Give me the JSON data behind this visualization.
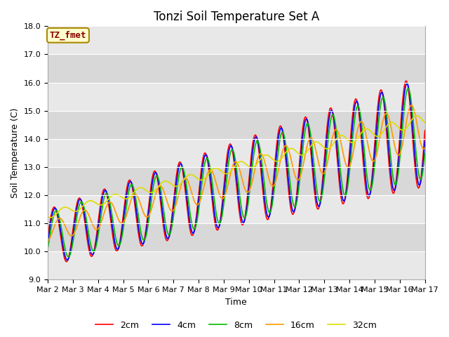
{
  "title": "Tonzi Soil Temperature Set A",
  "xlabel": "Time",
  "ylabel": "Soil Temperature (C)",
  "ylim": [
    9.0,
    18.0
  ],
  "yticks": [
    9.0,
    10.0,
    11.0,
    12.0,
    13.0,
    14.0,
    15.0,
    16.0,
    17.0,
    18.0
  ],
  "xtick_labels": [
    "Mar 2",
    "Mar 3",
    "Mar 4",
    "Mar 5",
    "Mar 6",
    "Mar 7",
    "Mar 8",
    "Mar 9",
    "Mar 10",
    "Mar 11",
    "Mar 12",
    "Mar 13",
    "Mar 14",
    "Mar 15",
    "Mar 16",
    "Mar 17"
  ],
  "series_colors": [
    "#ff0000",
    "#0000ff",
    "#00bb00",
    "#ff9900",
    "#dddd00"
  ],
  "series_labels": [
    "2cm",
    "4cm",
    "8cm",
    "16cm",
    "32cm"
  ],
  "annotation_text": "TZ_fmet",
  "annotation_bg": "#ffffcc",
  "annotation_edge": "#aa8800",
  "annotation_text_color": "#880000",
  "band_colors": [
    "#e8e8e8",
    "#d8d8d8"
  ],
  "n_points": 720,
  "start_day": 2,
  "end_day": 17,
  "title_fontsize": 12,
  "axis_label_fontsize": 9,
  "tick_fontsize": 8,
  "legend_fontsize": 9
}
